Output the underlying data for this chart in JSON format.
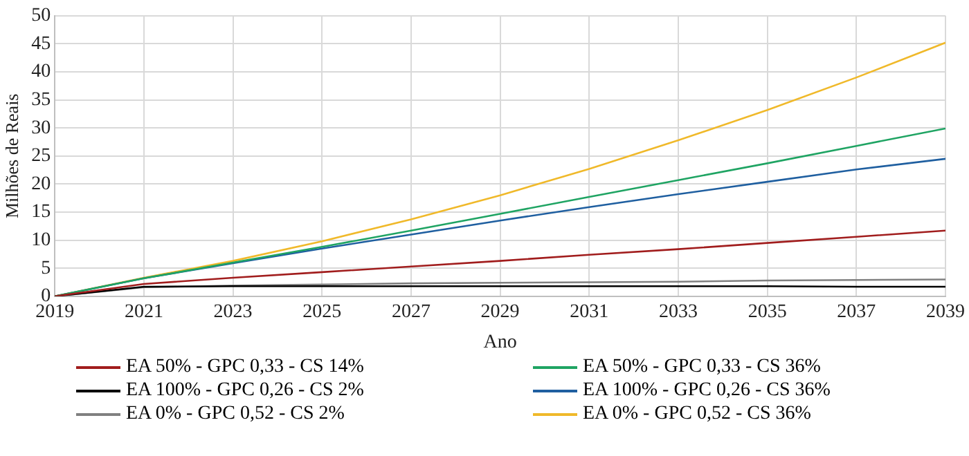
{
  "chart_data": {
    "type": "line",
    "xlabel": "Ano",
    "ylabel": "Milhões de Reais",
    "x": [
      2019,
      2021,
      2023,
      2025,
      2027,
      2029,
      2031,
      2033,
      2035,
      2037,
      2039
    ],
    "series": [
      {
        "name": "EA 50% - GPC 0,33 - CS 14%",
        "color": "#a11d1d",
        "values": [
          0,
          2.2,
          3.3,
          4.3,
          5.3,
          6.3,
          7.4,
          8.4,
          9.5,
          10.6,
          11.7
        ]
      },
      {
        "name": "EA 50% - GPC 0,33 - CS 36%",
        "color": "#1fa463",
        "values": [
          0,
          3.2,
          6.0,
          8.8,
          11.7,
          14.7,
          17.7,
          20.7,
          23.7,
          26.8,
          29.9
        ]
      },
      {
        "name": "EA 100% - GPC 0,26 - CS 2%",
        "color": "#000000",
        "values": [
          0,
          1.7,
          1.8,
          1.8,
          1.8,
          1.8,
          1.8,
          1.8,
          1.8,
          1.7,
          1.7
        ]
      },
      {
        "name": "EA 100% - GPC 0,26 - CS 36%",
        "color": "#1f5fa0",
        "values": [
          0,
          3.2,
          5.9,
          8.5,
          11.0,
          13.5,
          15.9,
          18.2,
          20.4,
          22.6,
          24.5
        ]
      },
      {
        "name": "EA 0% - GPC 0,52 - CS 2%",
        "color": "#808080",
        "values": [
          0,
          1.6,
          1.9,
          2.1,
          2.3,
          2.4,
          2.5,
          2.6,
          2.8,
          2.9,
          3.0
        ]
      },
      {
        "name": "EA 0% - GPC 0,52 - CS 36%",
        "color": "#f0b92a",
        "values": [
          0,
          3.3,
          6.3,
          9.8,
          13.7,
          18.0,
          22.7,
          27.8,
          33.2,
          39.0,
          45.2
        ]
      }
    ],
    "xlim": [
      2019,
      2039
    ],
    "xticks": [
      2019,
      2021,
      2023,
      2025,
      2027,
      2029,
      2031,
      2033,
      2035,
      2037,
      2039
    ],
    "ylim": [
      0,
      50
    ],
    "yticks": [
      0,
      5,
      10,
      15,
      20,
      25,
      30,
      35,
      40,
      45,
      50
    ],
    "grid": true,
    "legend": "bottom",
    "marker": "none",
    "line_style": "solid"
  }
}
